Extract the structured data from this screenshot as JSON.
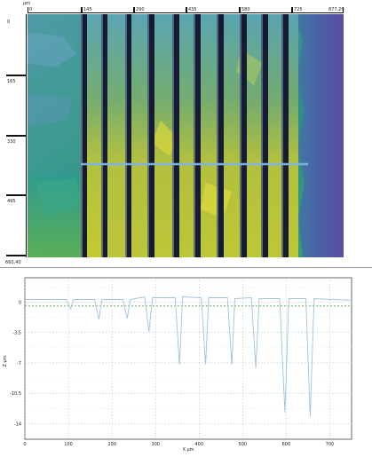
{
  "image_panel": {
    "unit": "μm",
    "x_ticks": [
      "0",
      "145",
      "290",
      "435",
      "580",
      "725",
      "877,20"
    ],
    "y_ticks": [
      "0",
      "165",
      "330",
      "495",
      "660,40"
    ]
  },
  "profile_panel": {
    "x_ticks": [
      "0",
      "100",
      "200",
      "300",
      "400",
      "500",
      "600",
      "700"
    ],
    "y_ticks": [
      "0",
      "-3,5",
      "-7",
      "-10,5",
      "-14"
    ],
    "y_label": "Z μm",
    "x_label": "X μm",
    "line_color": "#9fc3dc",
    "reference_line_color": "#4caf50"
  },
  "chart_data": {
    "type": "line",
    "xlabel": "X μm",
    "ylabel": "Z μm",
    "xlim": [
      0,
      750
    ],
    "ylim": [
      -15.8,
      2.8
    ],
    "grid": true,
    "series": [
      {
        "x": [
          0,
          95,
          105,
          112,
          160,
          170,
          177,
          225,
          235,
          242,
          275,
          285,
          293,
          345,
          355,
          362,
          405,
          415,
          422,
          465,
          475,
          482,
          520,
          530,
          538,
          585,
          597,
          606,
          645,
          655,
          664,
          750
        ],
        "y": [
          0.3,
          0.3,
          -0.8,
          0.3,
          0.3,
          -2.0,
          0.3,
          0.3,
          -1.9,
          0.3,
          0.6,
          -3.4,
          0.5,
          0.5,
          -7.2,
          0.6,
          0.5,
          -7.2,
          0.5,
          0.5,
          -7.2,
          0.4,
          0.5,
          -7.6,
          0.4,
          0.4,
          -12.7,
          0.4,
          0.4,
          -13.2,
          0.4,
          0.2
        ]
      }
    ]
  }
}
